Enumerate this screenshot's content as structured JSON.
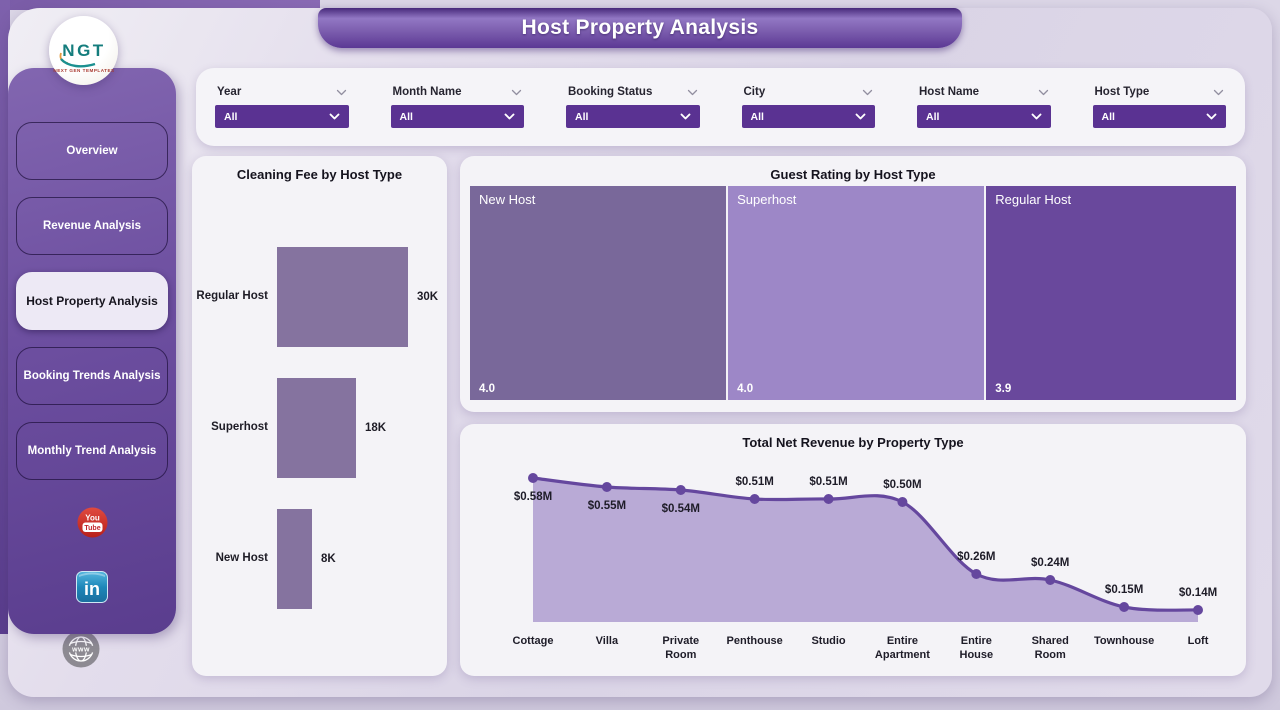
{
  "page": {
    "title": "Host Property Analysis"
  },
  "logo": {
    "acronym": "NGT",
    "subtitle": "NEXT GEN TEMPLATES"
  },
  "sidebar": {
    "items": [
      {
        "label": "Overview",
        "active": false
      },
      {
        "label": "Revenue Analysis",
        "active": false
      },
      {
        "label": "Host Property Analysis",
        "active": true
      },
      {
        "label": "Booking Trends Analysis",
        "active": false
      },
      {
        "label": "Monthly Trend Analysis",
        "active": false
      }
    ],
    "social": [
      "youtube",
      "linkedin",
      "website"
    ]
  },
  "filters": [
    {
      "label": "Year",
      "value": "All"
    },
    {
      "label": "Month Name",
      "value": "All"
    },
    {
      "label": "Booking Status",
      "value": "All"
    },
    {
      "label": "City",
      "value": "All"
    },
    {
      "label": "Host Name",
      "value": "All"
    },
    {
      "label": "Host Type",
      "value": "All"
    }
  ],
  "chart_data": [
    {
      "type": "bar",
      "orientation": "horizontal",
      "title": "Cleaning Fee by Host Type",
      "categories": [
        "Regular Host",
        "Superhost",
        "New Host"
      ],
      "values": [
        30000,
        18000,
        8000
      ],
      "value_labels": [
        "30K",
        "18K",
        "8K"
      ],
      "bar_color": "#85739F",
      "xlim": [
        0,
        30000
      ],
      "grid": false,
      "legend": "none"
    },
    {
      "type": "treemap",
      "title": "Guest Rating by Host Type",
      "tiles": [
        {
          "name": "New Host",
          "value": 4.0,
          "label": "4.0",
          "color": "#79689A"
        },
        {
          "name": "Superhost",
          "value": 4.0,
          "label": "4.0",
          "color": "#9D87C7"
        },
        {
          "name": "Regular Host",
          "value": 3.9,
          "label": "3.9",
          "color": "#69489C"
        }
      ]
    },
    {
      "type": "area",
      "title": "Total Net Revenue by Property Type",
      "categories": [
        "Cottage",
        "Villa",
        "Private Room",
        "Penthouse",
        "Studio",
        "Entire Apartment",
        "Entire House",
        "Shared Room",
        "Townhouse",
        "Loft"
      ],
      "values": [
        0.58,
        0.55,
        0.54,
        0.51,
        0.51,
        0.5,
        0.26,
        0.24,
        0.15,
        0.14
      ],
      "value_labels": [
        "$0.58M",
        "$0.55M",
        "$0.54M",
        "$0.51M",
        "$0.51M",
        "$0.50M",
        "$0.26M",
        "$0.24M",
        "$0.15M",
        "$0.14M"
      ],
      "label_position": [
        "below",
        "below",
        "below",
        "above",
        "above",
        "above",
        "above",
        "above",
        "above",
        "above"
      ],
      "unit": "M USD",
      "ylim": [
        0.1,
        0.65
      ],
      "line_color": "#65479E",
      "fill_color": "#B5A5D4",
      "marker_color": "#65479E",
      "grid": false,
      "legend": "none"
    }
  ]
}
